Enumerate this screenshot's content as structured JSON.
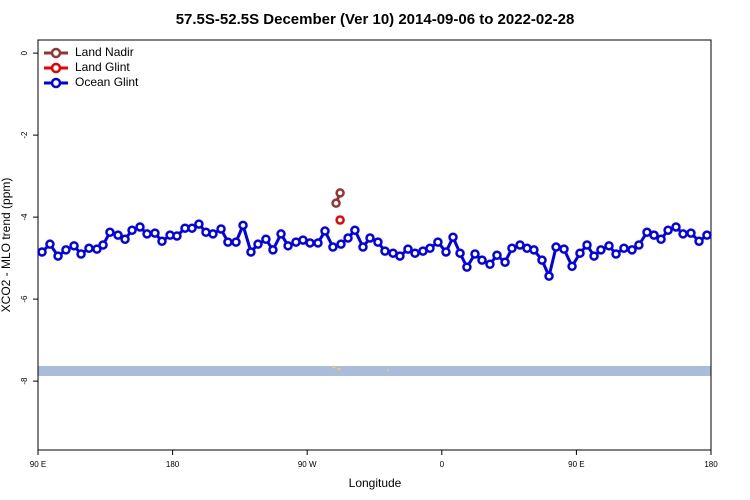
{
  "chart_data": {
    "type": "line",
    "title": "57.5S-52.5S December (Ver 10)   2014-09-06 to 2022-02-28",
    "x_label": "Longitude",
    "y_label": "XCO2 - MLO trend (ppm)",
    "xlim": [
      90,
      540
    ],
    "xticks": [
      {
        "value": 90,
        "label": "90 E"
      },
      180,
      {
        "value": 270,
        "label": "90 W"
      },
      {
        "value": 360,
        "label": "0"
      },
      {
        "value": 450,
        "label": "90 E"
      },
      {
        "value": 540,
        "label": "180"
      }
    ],
    "ylim": [
      -9.68,
      0.32
    ],
    "yticks": [
      0,
      -2,
      -4,
      -6,
      -8
    ],
    "legend": "top-left",
    "series": [
      {
        "name": "Land Nadir",
        "color": "#993333",
        "x": [
          289.3,
          292.0
        ],
        "values": [
          -3.66,
          -3.41
        ]
      },
      {
        "name": "Land Glint",
        "color": "#ee0000",
        "x": [
          292.0
        ],
        "values": [
          -4.07
        ]
      },
      {
        "name": "Ocean Glint",
        "color": "#0000ee",
        "x": [
          92.7,
          98.0,
          103.4,
          108.7,
          114.1,
          118.8,
          124.1,
          129.4,
          133.5,
          138.1,
          143.5,
          148.2,
          152.9,
          158.2,
          162.9,
          168.2,
          172.9,
          178.3,
          182.9,
          188.3,
          193.0,
          197.6,
          202.3,
          207.0,
          212.4,
          217.0,
          222.4,
          227.1,
          232.4,
          237.1,
          242.4,
          247.1,
          252.5,
          257.2,
          262.5,
          267.2,
          271.9,
          277.2,
          281.9,
          287.2,
          292.6,
          297.3,
          301.9,
          307.3,
          312.0,
          317.3,
          322.0,
          327.4,
          332.0,
          337.4,
          342.1,
          347.4,
          352.1,
          357.4,
          362.8,
          367.5,
          372.2,
          376.8,
          382.2,
          386.9,
          392.2,
          396.9,
          402.3,
          406.9,
          412.3,
          417.0,
          421.6,
          427.0,
          431.7,
          436.4,
          441.7,
          447.1,
          452.4,
          457.1,
          461.8,
          466.4,
          471.8,
          476.5,
          481.8,
          487.2,
          491.8,
          497.2,
          501.9,
          506.6,
          511.3,
          516.6,
          521.3,
          526.6,
          532.0,
          537.3
        ],
        "values": [
          -4.85,
          -4.66,
          -4.95,
          -4.8,
          -4.7,
          -4.9,
          -4.76,
          -4.78,
          -4.68,
          -4.37,
          -4.44,
          -4.54,
          -4.32,
          -4.24,
          -4.41,
          -4.39,
          -4.59,
          -4.44,
          -4.46,
          -4.27,
          -4.27,
          -4.17,
          -4.37,
          -4.41,
          -4.29,
          -4.61,
          -4.61,
          -4.2,
          -4.85,
          -4.66,
          -4.54,
          -4.8,
          -4.41,
          -4.7,
          -4.61,
          -4.56,
          -4.63,
          -4.63,
          -4.34,
          -4.73,
          -4.66,
          -4.51,
          -4.32,
          -4.73,
          -4.51,
          -4.61,
          -4.83,
          -4.88,
          -4.95,
          -4.78,
          -4.88,
          -4.83,
          -4.76,
          -4.61,
          -4.85,
          -4.49,
          -4.88,
          -5.22,
          -4.9,
          -5.05,
          -5.15,
          -4.93,
          -5.1,
          -4.76,
          -4.68,
          -4.76,
          -4.8,
          -5.05,
          -5.44,
          -4.73,
          -4.78,
          -5.2,
          -4.88,
          -4.68,
          -4.95,
          -4.8,
          -4.7,
          -4.9,
          -4.76,
          -4.8,
          -4.68,
          -4.37,
          -4.44,
          -4.54,
          -4.32,
          -4.24,
          -4.41,
          -4.39,
          -4.59,
          -4.44
        ]
      }
    ]
  }
}
